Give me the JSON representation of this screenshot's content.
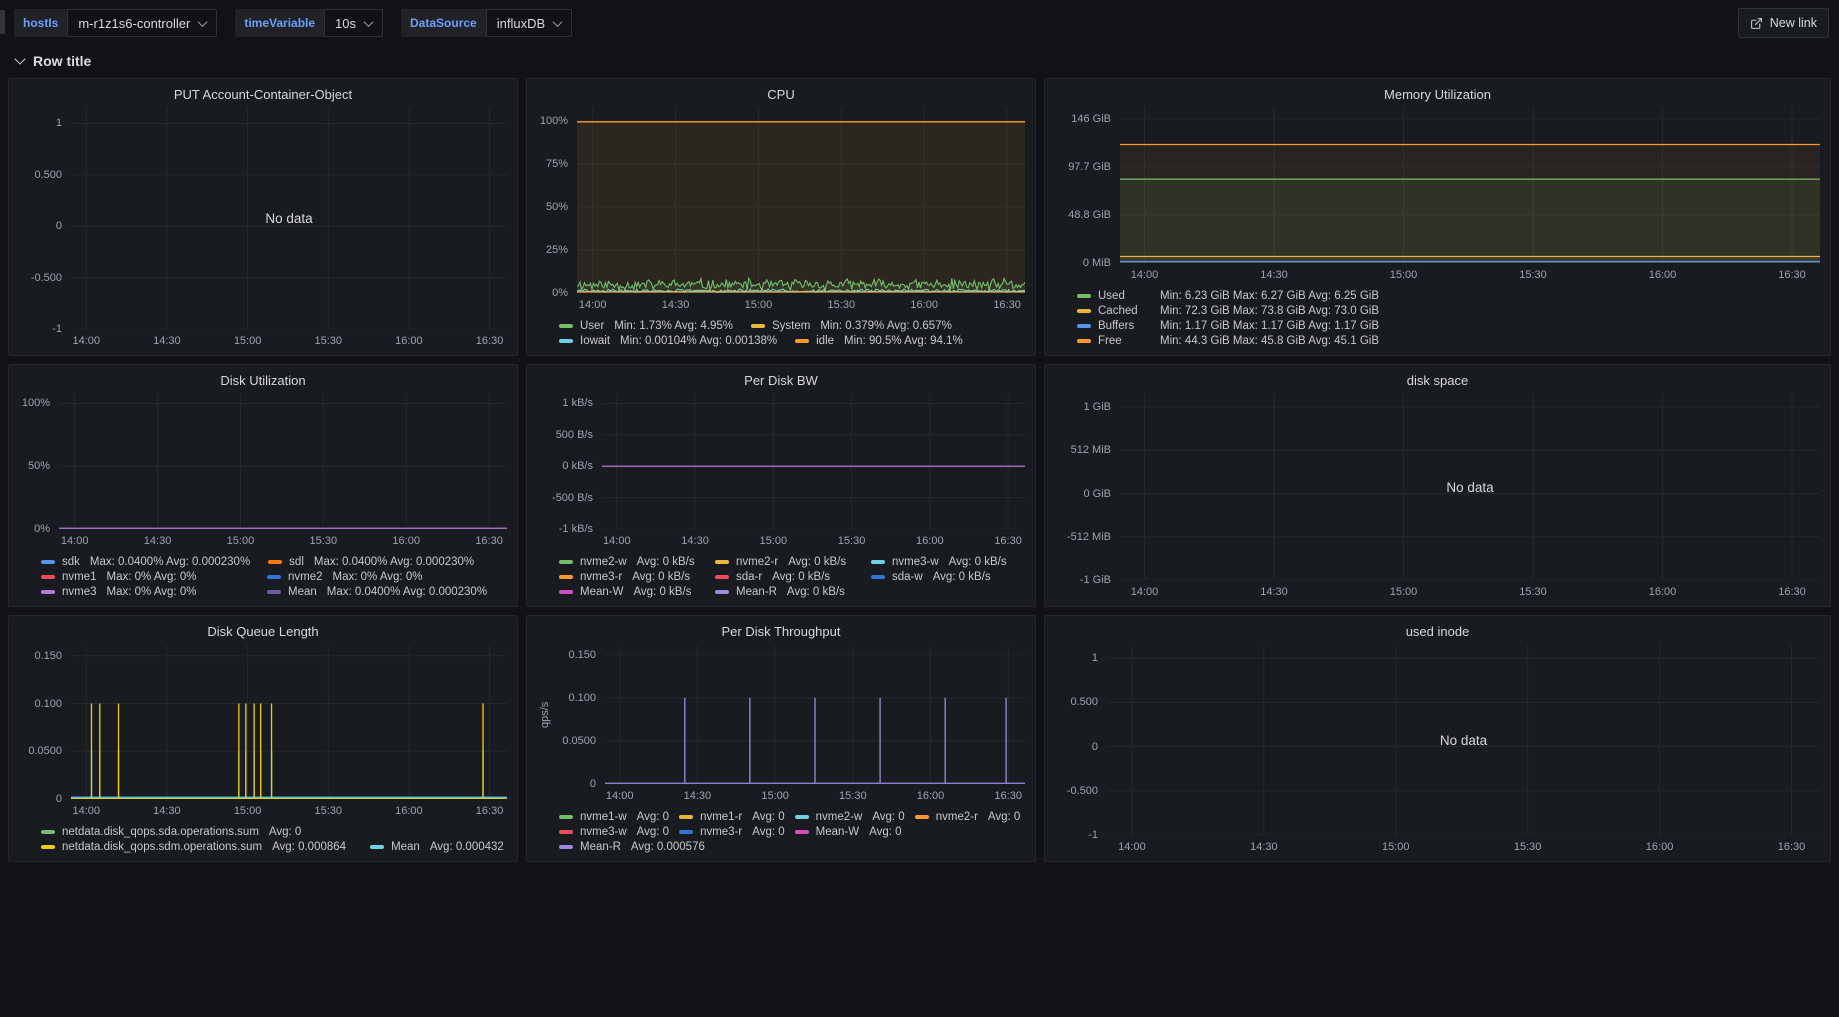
{
  "topbar": {
    "variables": [
      {
        "label": "hostIs",
        "value": "m-r1z1s6-controller"
      },
      {
        "label": "timeVariable",
        "value": "10s"
      },
      {
        "label": "DataSource",
        "value": "influxDB"
      }
    ],
    "new_link_label": "New link"
  },
  "row": {
    "title": "Row title"
  },
  "common": {
    "no_data": "No data",
    "x_ticks": [
      "14:00",
      "14:30",
      "15:00",
      "15:30",
      "16:00",
      "16:30"
    ]
  },
  "colors": {
    "page_bg": "#111217",
    "panel_bg": "#181b1f",
    "accent_blue": "#6e9fff",
    "green": "#73BF69",
    "yellow": "#EAB839",
    "blue": "#5794F2",
    "orange": "#FF9830",
    "red": "#F2495C",
    "purple": "#B877D9",
    "cyan": "#6ED0E0"
  },
  "panels": [
    {
      "title": "PUT Account-Container-Object",
      "y_ticks": [
        "1",
        "0.500",
        "0",
        "-0.500",
        "-1"
      ],
      "no_data": true,
      "series": []
    },
    {
      "title": "CPU",
      "y_ticks": [
        "100%",
        "75%",
        "50%",
        "25%",
        "0%"
      ],
      "series": [
        {
          "color": "#FF9830",
          "kind": "flat",
          "v": 0.995,
          "fill": 0.09
        },
        {
          "color": "#73BF69",
          "kind": "noisy",
          "v": 0.048,
          "amp": 0.04,
          "fill": 0.1,
          "seed": 11
        },
        {
          "color": "#6ED0E0",
          "kind": "noisy",
          "v": 0.013,
          "amp": 0.012,
          "seed": 29
        },
        {
          "color": "#EAB839",
          "kind": "flat",
          "v": 0.007
        }
      ],
      "legend": {
        "gap": 18,
        "rows": [
          [
            {
              "color": "#73BF69",
              "label": "User",
              "stats": "Min: 1.73% Avg: 4.95%"
            },
            {
              "color": "#EAB839",
              "label": "System",
              "stats": "Min: 0.379% Avg: 0.657%"
            }
          ],
          [
            {
              "color": "#6ED0E0",
              "label": "Iowait",
              "stats": "Min: 0.00104% Avg: 0.00138%"
            },
            {
              "color": "#FF9830",
              "label": "idle",
              "stats": "Min: 90.5% Avg: 94.1%"
            }
          ]
        ]
      }
    },
    {
      "title": "Memory Utilization",
      "y_ticks": [
        "146 GiB",
        "97.7 GiB",
        "48.8 GiB",
        "0 MiB"
      ],
      "series": [
        {
          "color": "#FF9830",
          "kind": "flat",
          "v": 0.822,
          "fill": 0.07
        },
        {
          "color": "#73BF69",
          "kind": "flat",
          "v": 0.582,
          "fill": 0.1
        },
        {
          "color": "#EAB839",
          "kind": "flat",
          "v": 0.045,
          "fill": 0.06
        },
        {
          "color": "#5794F2",
          "kind": "flat",
          "v": 0.01
        }
      ],
      "legend": {
        "gap": 18,
        "label_width": 52,
        "rows": [
          [
            {
              "color": "#73BF69",
              "label": "Used",
              "stats": "Min: 6.23 GiB Max: 6.27 GiB Avg: 6.25 GiB"
            }
          ],
          [
            {
              "color": "#EAB839",
              "label": "Cached",
              "stats": "Min: 72.3 GiB Max: 73.8 GiB Avg: 73.0 GiB"
            }
          ],
          [
            {
              "color": "#5794F2",
              "label": "Buffers",
              "stats": "Min: 1.17 GiB Max: 1.17 GiB Avg: 1.17 GiB"
            }
          ],
          [
            {
              "color": "#FF9830",
              "label": "Free",
              "stats": "Min: 44.3 GiB Max: 45.8 GiB Avg: 45.1 GiB"
            }
          ]
        ]
      }
    },
    {
      "title": "Disk Utilization",
      "y_ticks": [
        "100%",
        "50%",
        "0%"
      ],
      "series": [
        {
          "color": "#B877D9",
          "kind": "flat",
          "v": 0.006,
          "fill": 0.04
        }
      ],
      "legend": {
        "gap": 18,
        "item_min_width": 208,
        "rows": [
          [
            {
              "color": "#5794F2",
              "label": "sdk",
              "stats": "Max: 0.0400% Avg: 0.000230%"
            },
            {
              "color": "#FF780A",
              "label": "sdl",
              "stats": "Max: 0.0400% Avg: 0.000230%"
            }
          ],
          [
            {
              "color": "#F2495C",
              "label": "nvme1",
              "stats": "Max: 0% Avg: 0%"
            },
            {
              "color": "#3274D9",
              "label": "nvme2",
              "stats": "Max: 0% Avg: 0%"
            }
          ],
          [
            {
              "color": "#B877D9",
              "label": "nvme3",
              "stats": "Max: 0% Avg: 0%"
            },
            {
              "color": "#705DA0",
              "label": "Mean",
              "stats": "Max: 0.0400% Avg: 0.000230%"
            }
          ]
        ]
      }
    },
    {
      "title": "Per Disk BW",
      "y_ticks": [
        "1 kB/s",
        "500 B/s",
        "0 kB/s",
        "-500 B/s",
        "-1 kB/s"
      ],
      "series": [
        {
          "color": "#B877D9",
          "kind": "flat",
          "v": 0.5
        }
      ],
      "legend": {
        "gap": 16,
        "item_min_width": 140,
        "rows": [
          [
            {
              "color": "#73BF69",
              "label": "nvme2-w",
              "stats": "Avg: 0 kB/s"
            },
            {
              "color": "#EAB839",
              "label": "nvme2-r",
              "stats": "Avg: 0 kB/s"
            },
            {
              "color": "#6ED0E0",
              "label": "nvme3-w",
              "stats": "Avg: 0 kB/s"
            }
          ],
          [
            {
              "color": "#FF9830",
              "label": "nvme3-r",
              "stats": "Avg: 0 kB/s"
            },
            {
              "color": "#F2495C",
              "label": "sda-r",
              "stats": "Avg: 0 kB/s"
            },
            {
              "color": "#3274D9",
              "label": "sda-w",
              "stats": "Avg: 0 kB/s"
            }
          ],
          [
            {
              "color": "#D64FBE",
              "label": "Mean-W",
              "stats": "Avg: 0 kB/s"
            },
            {
              "color": "#9B8AE0",
              "label": "Mean-R",
              "stats": "Avg: 0 kB/s"
            }
          ]
        ]
      }
    },
    {
      "title": "disk space",
      "y_ticks": [
        "1 GiB",
        "512 MiB",
        "0 GiB",
        "-512 MiB",
        "-1 GiB"
      ],
      "no_data": true,
      "series": []
    },
    {
      "title": "Disk Queue Length",
      "y_ticks": [
        "0.150",
        "0.100",
        "0.0500",
        "0"
      ],
      "series": [
        {
          "color": "#73BF69",
          "kind": "flat",
          "v": 0.004
        },
        {
          "color": "#6ED0E0",
          "kind": "spikes",
          "v": 0.012,
          "spike_v": 0.34,
          "xs": [
            0.047,
            0.066,
            0.109,
            0.385,
            0.401,
            0.42,
            0.435,
            0.46,
            0.945
          ],
          "fill": 0.1
        },
        {
          "color": "#F2CC0C",
          "kind": "spikes",
          "v": 0.001,
          "spike_v": 0.667,
          "xs": [
            0.047,
            0.066,
            0.109,
            0.385,
            0.401,
            0.42,
            0.435,
            0.46,
            0.945
          ]
        }
      ],
      "legend": {
        "gap": 24,
        "rows": [
          [
            {
              "color": "#73BF69",
              "label": "netdata.disk_qops.sda.operations.sum",
              "stats": "Avg: 0"
            }
          ],
          [
            {
              "color": "#F2CC0C",
              "label": "netdata.disk_qops.sdm.operations.sum",
              "stats": "Avg: 0.000864"
            },
            {
              "color": "#6ED0E0",
              "label": "Mean",
              "stats": "Avg: 0.000432"
            }
          ]
        ]
      }
    },
    {
      "title": "Per Disk Throughput",
      "ylabel": "qps/s",
      "y_ticks": [
        "0.150",
        "0.100",
        "0.0500",
        "0"
      ],
      "series": [
        {
          "color": "#9B8AE0",
          "kind": "spikes",
          "v": 0.006,
          "spike_v": 0.667,
          "xs": [
            0.19,
            0.345,
            0.5,
            0.655,
            0.81,
            0.955
          ],
          "fill": 0.05
        }
      ],
      "legend": {
        "gap": 10,
        "item_min_width": 100,
        "rows": [
          [
            {
              "color": "#73BF69",
              "label": "nvme1-w",
              "stats": "Avg: 0"
            },
            {
              "color": "#EAB839",
              "label": "nvme1-r",
              "stats": "Avg: 0"
            },
            {
              "color": "#6ED0E0",
              "label": "nvme2-w",
              "stats": "Avg: 0"
            },
            {
              "color": "#FF9830",
              "label": "nvme2-r",
              "stats": "Avg: 0"
            }
          ],
          [
            {
              "color": "#F2495C",
              "label": "nvme3-w",
              "stats": "Avg: 0"
            },
            {
              "color": "#3274D9",
              "label": "nvme3-r",
              "stats": "Avg: 0"
            },
            {
              "color": "#D64FBE",
              "label": "Mean-W",
              "stats": "Avg: 0"
            }
          ],
          [
            {
              "color": "#9B8AE0",
              "label": "Mean-R",
              "stats": "Avg: 0.000576"
            }
          ]
        ]
      }
    },
    {
      "title": "used inode",
      "y_ticks": [
        "1",
        "0.500",
        "0",
        "-0.500",
        "-1"
      ],
      "no_data": true,
      "series": []
    }
  ]
}
